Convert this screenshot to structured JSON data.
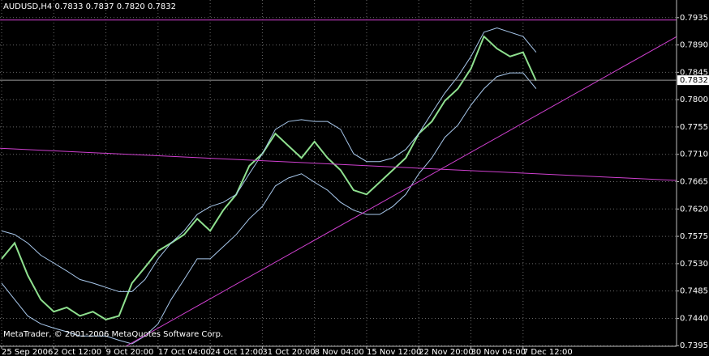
{
  "chart_data": {
    "type": "price",
    "title": "AUDUSD,H4  0.7833 0.7837 0.7820 0.7832",
    "footer": "MetaTrader, © 2001-2006 MetaQuotes Software Corp.",
    "categories": [
      "25 Sep 2006",
      null,
      null,
      null,
      "2 Oct 12:00",
      null,
      null,
      null,
      "9 Oct 20:00",
      null,
      null,
      null,
      "17 Oct 04:00",
      null,
      null,
      null,
      "24 Oct 12:00",
      null,
      null,
      null,
      "31 Oct 20:00",
      null,
      null,
      null,
      "8 Nov 04:00",
      null,
      null,
      null,
      "15 Nov 12:00",
      null,
      null,
      null,
      "22 Nov 20:00",
      null,
      null,
      null,
      "30 Nov 04:00",
      null,
      null,
      null,
      "7 Dec 12:00",
      null
    ],
    "series": [
      {
        "name": "AUDUSD",
        "color": "#8fe08f",
        "values": [
          0.7538,
          0.7564,
          0.7511,
          0.7471,
          0.7451,
          0.7458,
          0.7444,
          0.7451,
          0.7438,
          0.7444,
          0.7498,
          0.7524,
          0.7551,
          0.7564,
          0.7578,
          0.7604,
          0.7584,
          0.7618,
          0.7644,
          0.7691,
          0.7711,
          0.7744,
          0.7724,
          0.7704,
          0.7731,
          0.7704,
          0.7684,
          0.7651,
          0.7644,
          0.7664,
          0.7684,
          0.7704,
          0.7744,
          0.7764,
          0.7798,
          0.7818,
          0.7851,
          0.7904,
          0.7884,
          0.7871,
          0.7878,
          0.7831
        ]
      },
      {
        "color": "#a8c8ec",
        "values": [
          0.7584,
          0.7578,
          0.7564,
          0.7544,
          0.7531,
          0.7518,
          0.7504,
          0.7498,
          0.7491,
          0.7484,
          0.7484,
          0.7504,
          0.7538,
          0.7564,
          0.7584,
          0.7611,
          0.7624,
          0.7631,
          0.7644,
          0.7678,
          0.7711,
          0.7751,
          0.7764,
          0.7767,
          0.7764,
          0.7764,
          0.7751,
          0.7711,
          0.7698,
          0.7698,
          0.7704,
          0.7718,
          0.7744,
          0.7778,
          0.7811,
          0.7838,
          0.7871,
          0.7911,
          0.7918,
          0.7911,
          0.7904,
          0.7878
        ]
      },
      {
        "color": "#a8c8ec",
        "values": [
          0.7498,
          0.7471,
          0.7444,
          0.7431,
          0.7424,
          0.7418,
          0.7411,
          0.7411,
          0.7411,
          0.7404,
          0.7398,
          0.7411,
          0.7431,
          0.7471,
          0.7504,
          0.7538,
          0.7538,
          0.7558,
          0.7578,
          0.7604,
          0.7624,
          0.7658,
          0.7671,
          0.7678,
          0.7664,
          0.7651,
          0.7631,
          0.7618,
          0.7611,
          0.7611,
          0.7624,
          0.7644,
          0.7678,
          0.7704,
          0.7738,
          0.7758,
          0.7791,
          0.7818,
          0.7838,
          0.7844,
          0.7844,
          0.7818
        ]
      }
    ],
    "trendlines": [
      {
        "color": "#d040d0",
        "start": [
          -0.12,
          0.7931
        ],
        "end": [
          51.8,
          0.7931
        ]
      },
      {
        "color": "#d040d0",
        "start": [
          -0.12,
          0.772
        ],
        "end": [
          51.8,
          0.7667
        ]
      },
      {
        "color": "#d040d0",
        "start": [
          9.52,
          0.7394
        ],
        "end": [
          51.8,
          0.7904
        ]
      }
    ],
    "current_price": 0.7832,
    "ylim": [
      0.7394,
      0.7964
    ],
    "yticks": [
      0.7935,
      {
        "value": 0.789,
        "label": "0.7890"
      },
      0.7845,
      {
        "value": 0.78,
        "label": "0.7800"
      },
      0.7755,
      {
        "value": 0.771,
        "label": "0.7710"
      },
      0.7665,
      {
        "value": 0.762,
        "label": "0.7620"
      },
      0.7575,
      {
        "value": 0.753,
        "label": "0.7530"
      },
      0.7485,
      {
        "value": 0.744,
        "label": "0.7440"
      },
      0.7395
    ],
    "grid": true
  }
}
